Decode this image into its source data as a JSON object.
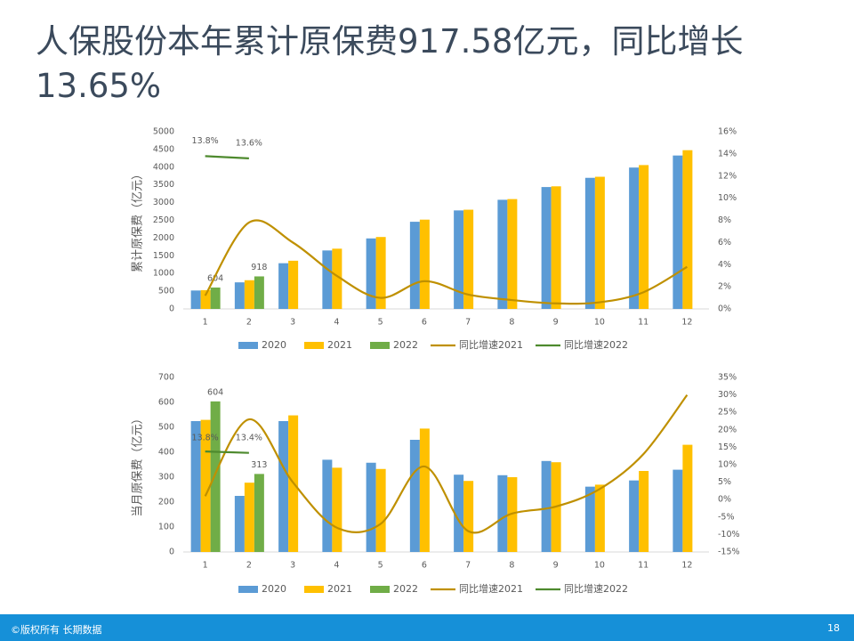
{
  "title": "人保股份本年累计原保费917.58亿元，同比增长13.65%",
  "footer": {
    "copyright": "©版权所有 长期数据",
    "page": "18"
  },
  "chart_data": [
    {
      "type": "bar",
      "y_label": "累计原保费（亿元）",
      "categories": [
        "1",
        "2",
        "3",
        "4",
        "5",
        "6",
        "7",
        "8",
        "9",
        "10",
        "11",
        "12"
      ],
      "ylim": [
        0,
        5000
      ],
      "yticks": [
        0,
        500,
        1000,
        1500,
        2000,
        2500,
        3000,
        3500,
        4000,
        4500,
        5000
      ],
      "y2lim": [
        0,
        16
      ],
      "y2ticks": [
        {
          "value": 0,
          "label": "0%"
        },
        {
          "value": 2,
          "label": "2%"
        },
        {
          "value": 4,
          "label": "4%"
        },
        {
          "value": 6,
          "label": "6%"
        },
        {
          "value": 8,
          "label": "8%"
        },
        {
          "value": 10,
          "label": "10%"
        },
        {
          "value": 12,
          "label": "12%"
        },
        {
          "value": 14,
          "label": "14%"
        },
        {
          "value": 16,
          "label": "16%"
        }
      ],
      "legend": "bottom",
      "series": [
        {
          "name": "2020",
          "type": "bar",
          "color": "#5b9bd5",
          "values": [
            520,
            750,
            1290,
            1650,
            1990,
            2460,
            2780,
            3080,
            3440,
            3700,
            3990,
            4330
          ]
        },
        {
          "name": "2021",
          "type": "bar",
          "color": "#ffc000",
          "values": [
            530,
            810,
            1360,
            1700,
            2030,
            2520,
            2800,
            3100,
            3460,
            3730,
            4060,
            4480
          ]
        },
        {
          "name": "2022",
          "type": "bar",
          "color": "#70ad47",
          "values": [
            604,
            918,
            null,
            null,
            null,
            null,
            null,
            null,
            null,
            null,
            null,
            null
          ],
          "show_labels": true
        },
        {
          "name": "同比增速2021",
          "type": "line",
          "axis": "y2",
          "color": "#bf9000",
          "values": [
            1.2,
            7.8,
            6.0,
            3.0,
            1.0,
            2.5,
            1.3,
            0.8,
            0.5,
            0.6,
            1.5,
            3.8
          ]
        },
        {
          "name": "同比增速2022",
          "type": "line",
          "axis": "y2",
          "color": "#4e8a2e",
          "values": [
            13.8,
            13.6,
            null,
            null,
            null,
            null,
            null,
            null,
            null,
            null,
            null,
            null
          ],
          "value_labels": [
            "13.8%",
            "13.6%",
            null,
            null,
            null,
            null,
            null,
            null,
            null,
            null,
            null,
            null
          ]
        }
      ]
    },
    {
      "type": "bar",
      "y_label": "当月原保费（亿元）",
      "categories": [
        "1",
        "2",
        "3",
        "4",
        "5",
        "6",
        "7",
        "8",
        "9",
        "10",
        "11",
        "12"
      ],
      "ylim": [
        0,
        700
      ],
      "yticks": [
        0,
        100,
        200,
        300,
        400,
        500,
        600,
        700
      ],
      "y2lim": [
        -15,
        35
      ],
      "y2ticks": [
        {
          "value": -15,
          "label": "-15%"
        },
        {
          "value": -10,
          "label": "-10%"
        },
        {
          "value": -5,
          "label": "-5%"
        },
        {
          "value": 0,
          "label": "0%"
        },
        {
          "value": 5,
          "label": "5%"
        },
        {
          "value": 10,
          "label": "10%"
        },
        {
          "value": 15,
          "label": "15%"
        },
        {
          "value": 20,
          "label": "20%"
        },
        {
          "value": 25,
          "label": "25%"
        },
        {
          "value": 30,
          "label": "30%"
        },
        {
          "value": 35,
          "label": "35%"
        }
      ],
      "legend": "bottom",
      "series": [
        {
          "name": "2020",
          "type": "bar",
          "color": "#5b9bd5",
          "values": [
            525,
            225,
            525,
            370,
            358,
            450,
            310,
            308,
            365,
            262,
            287,
            330
          ]
        },
        {
          "name": "2021",
          "type": "bar",
          "color": "#ffc000",
          "values": [
            530,
            278,
            548,
            338,
            333,
            495,
            285,
            300,
            360,
            270,
            325,
            430
          ]
        },
        {
          "name": "2022",
          "type": "bar",
          "color": "#70ad47",
          "values": [
            604,
            313,
            null,
            null,
            null,
            null,
            null,
            null,
            null,
            null,
            null,
            null
          ],
          "show_labels": true
        },
        {
          "name": "同比增速2021",
          "type": "line",
          "axis": "y2",
          "color": "#bf9000",
          "values": [
            1,
            23,
            5,
            -8,
            -7,
            9.5,
            -9,
            -4,
            -2,
            3,
            13,
            30
          ]
        },
        {
          "name": "同比增速2022",
          "type": "line",
          "axis": "y2",
          "color": "#4e8a2e",
          "values": [
            13.8,
            13.4,
            null,
            null,
            null,
            null,
            null,
            null,
            null,
            null,
            null,
            null
          ],
          "value_labels": [
            "13.8%",
            "13.4%",
            null,
            null,
            null,
            null,
            null,
            null,
            null,
            null,
            null,
            null
          ]
        }
      ]
    }
  ]
}
